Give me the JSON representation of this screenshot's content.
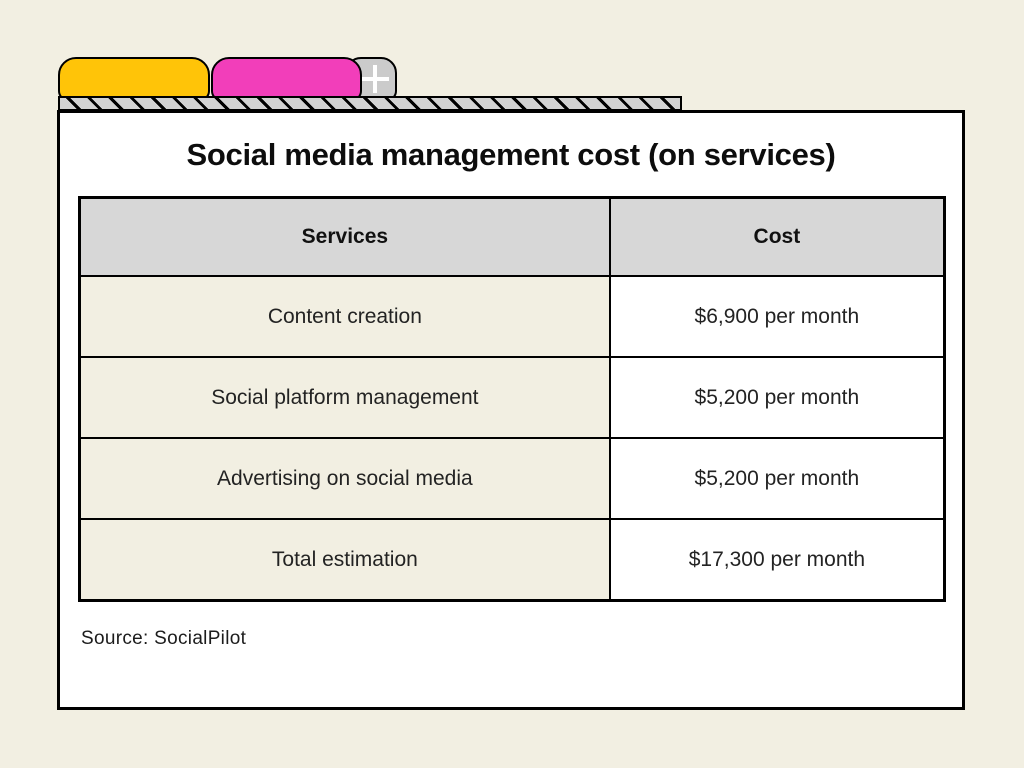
{
  "title": "Social media management cost (on services)",
  "source_label": "Source: SocialPilot",
  "tabs": {
    "yellow_tab": "folder tab",
    "pink_tab": "folder tab",
    "new_tab_icon": "plus"
  },
  "colors": {
    "page_background": "#f2efe2",
    "card_background": "#ffffff",
    "border": "#000000",
    "tab_yellow": "#ffc408",
    "tab_pink": "#f23eba",
    "tab_gray": "#cbcbcb",
    "header_cell_background": "#d7d7d7",
    "services_cell_background": "#f2efe2",
    "cost_cell_background": "#ffffff",
    "hatch_background": "#d2d2d2"
  },
  "chart_data": {
    "type": "table",
    "title": "Social media management cost (on services)",
    "columns": [
      "Services",
      "Cost"
    ],
    "rows": [
      [
        "Content creation",
        "$6,900 per month"
      ],
      [
        "Social platform management",
        "$5,200 per month"
      ],
      [
        "Advertising on social media",
        "$5,200 per month"
      ],
      [
        "Total estimation",
        "$17,300 per month"
      ]
    ],
    "values_usd_per_month": [
      6900,
      5200,
      5200,
      17300
    ],
    "source": "SocialPilot"
  }
}
